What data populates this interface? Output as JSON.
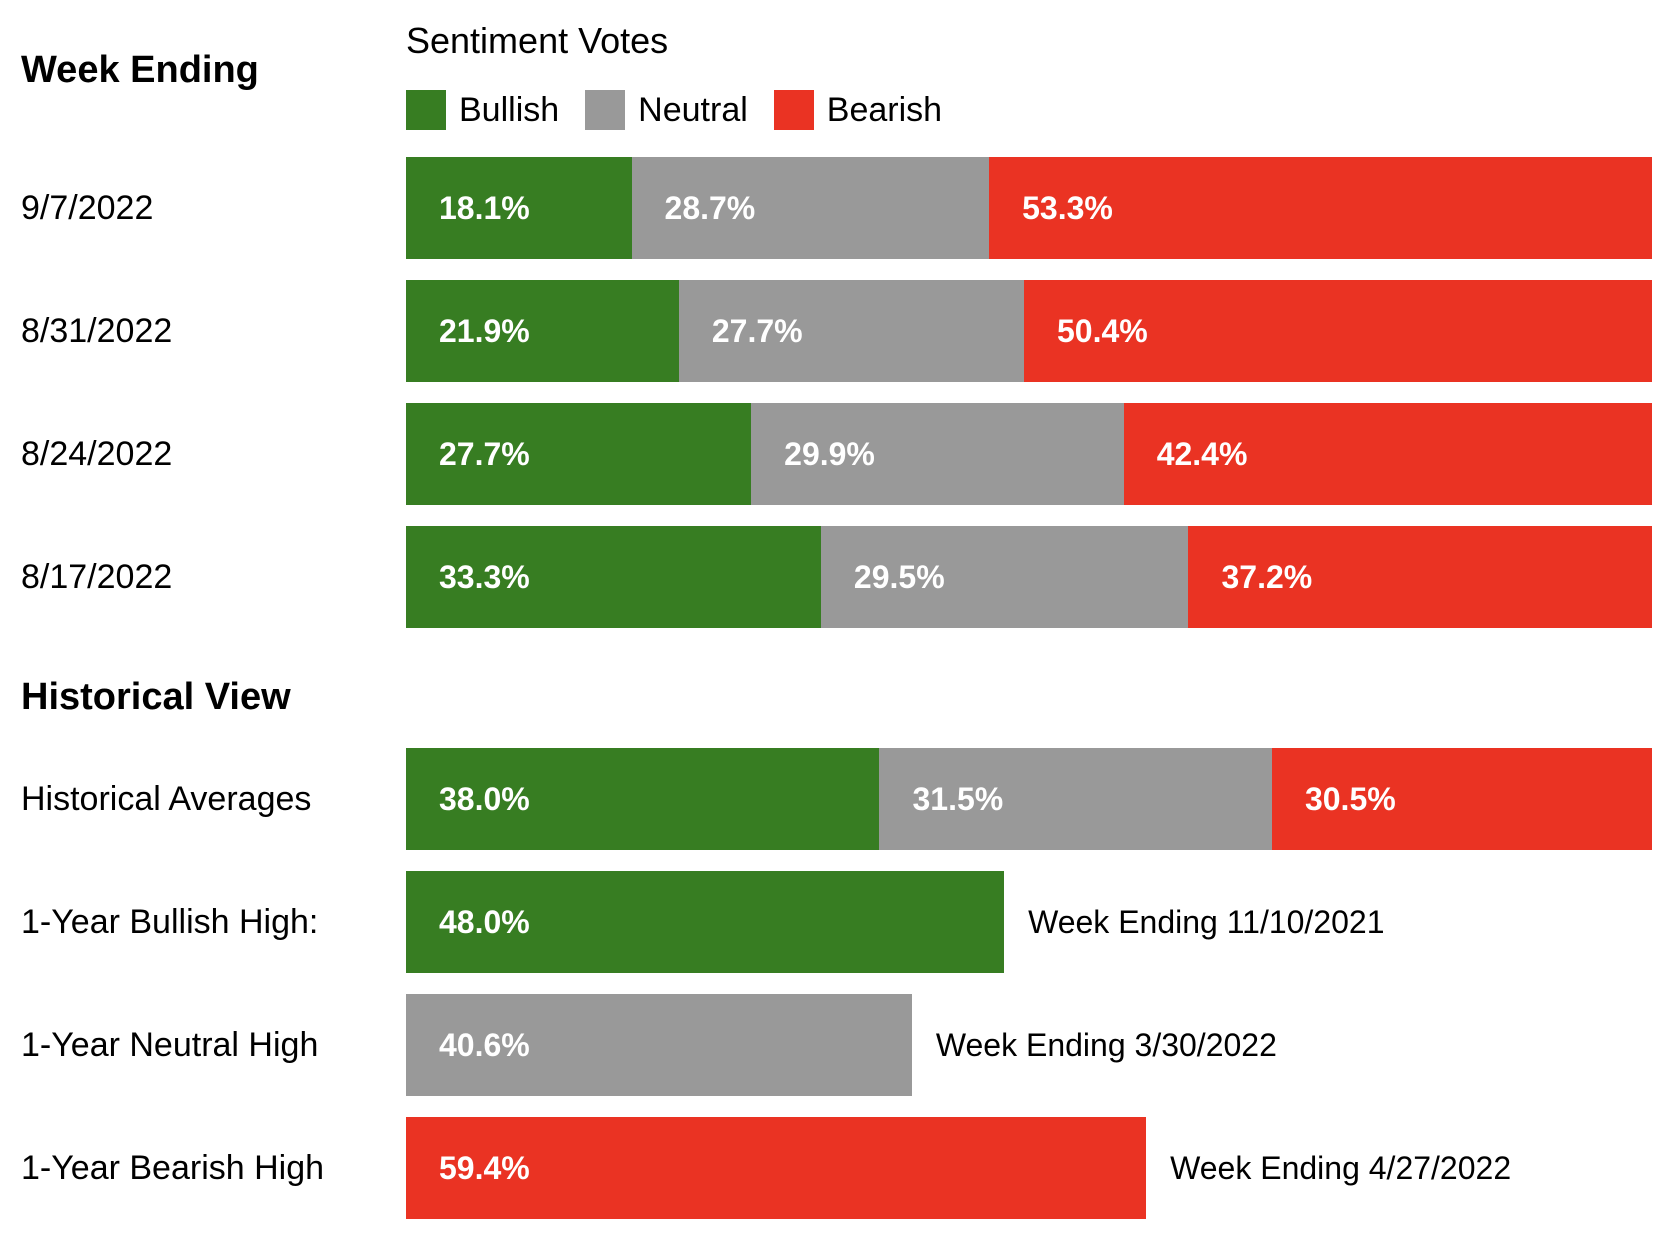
{
  "page": {
    "week_ending_label": "Week Ending",
    "chart_title": "Sentiment Votes"
  },
  "colors": {
    "bullish": "#377D22",
    "neutral": "#999999",
    "bearish": "#EA3323"
  },
  "legend": [
    {
      "key": "bullish",
      "label": "Bullish",
      "color": "#377D22"
    },
    {
      "key": "neutral",
      "label": "Neutral",
      "color": "#999999"
    },
    {
      "key": "bearish",
      "label": "Bearish",
      "color": "#EA3323"
    }
  ],
  "weekly_rows": [
    {
      "date": "9/7/2022",
      "segments": [
        {
          "key": "bullish",
          "value": 18.1,
          "label": "18.1%"
        },
        {
          "key": "neutral",
          "value": 28.7,
          "label": "28.7%"
        },
        {
          "key": "bearish",
          "value": 53.3,
          "label": "53.3%"
        }
      ]
    },
    {
      "date": "8/31/2022",
      "segments": [
        {
          "key": "bullish",
          "value": 21.9,
          "label": "21.9%"
        },
        {
          "key": "neutral",
          "value": 27.7,
          "label": "27.7%"
        },
        {
          "key": "bearish",
          "value": 50.4,
          "label": "50.4%"
        }
      ]
    },
    {
      "date": "8/24/2022",
      "segments": [
        {
          "key": "bullish",
          "value": 27.7,
          "label": "27.7%"
        },
        {
          "key": "neutral",
          "value": 29.9,
          "label": "29.9%"
        },
        {
          "key": "bearish",
          "value": 42.4,
          "label": "42.4%"
        }
      ]
    },
    {
      "date": "8/17/2022",
      "segments": [
        {
          "key": "bullish",
          "value": 33.3,
          "label": "33.3%"
        },
        {
          "key": "neutral",
          "value": 29.5,
          "label": "29.5%"
        },
        {
          "key": "bearish",
          "value": 37.2,
          "label": "37.2%"
        }
      ]
    }
  ],
  "historical": {
    "heading": "Historical View",
    "average_row": {
      "label": "Historical Averages",
      "segments": [
        {
          "key": "bullish",
          "value": 38.0,
          "label": "38.0%"
        },
        {
          "key": "neutral",
          "value": 31.5,
          "label": "31.5%"
        },
        {
          "key": "bearish",
          "value": 30.5,
          "label": "30.5%"
        }
      ]
    },
    "high_rows": [
      {
        "label": "1-Year Bullish High:",
        "key": "bullish",
        "value": 48.0,
        "value_label": "48.0%",
        "note": "Week Ending 11/10/2021"
      },
      {
        "label": "1-Year Neutral High",
        "key": "neutral",
        "value": 40.6,
        "value_label": "40.6%",
        "note": "Week Ending 3/30/2022"
      },
      {
        "label": "1-Year Bearish High",
        "key": "bearish",
        "value": 59.4,
        "value_label": "59.4%",
        "note": "Week Ending 4/27/2022"
      }
    ]
  },
  "chart_data": {
    "type": "bar",
    "subtype": "horizontal-stacked-100pct",
    "title": "Sentiment Votes",
    "row_axis_label": "Week Ending",
    "categories": [
      "9/7/2022",
      "8/31/2022",
      "8/24/2022",
      "8/17/2022"
    ],
    "series": [
      {
        "name": "Bullish",
        "color": "#377D22",
        "values": [
          18.1,
          21.9,
          27.7,
          33.3
        ]
      },
      {
        "name": "Neutral",
        "color": "#999999",
        "values": [
          28.7,
          27.7,
          29.9,
          29.5
        ]
      },
      {
        "name": "Bearish",
        "color": "#EA3323",
        "values": [
          53.3,
          50.4,
          42.4,
          37.2
        ]
      }
    ],
    "historical_section": {
      "heading": "Historical View",
      "averages": {
        "label": "Historical Averages",
        "Bullish": 38.0,
        "Neutral": 31.5,
        "Bearish": 30.5
      },
      "highs": [
        {
          "label": "1-Year Bullish High:",
          "series": "Bullish",
          "value": 48.0,
          "note": "Week Ending 11/10/2021"
        },
        {
          "label": "1-Year Neutral High",
          "series": "Neutral",
          "value": 40.6,
          "note": "Week Ending 3/30/2022"
        },
        {
          "label": "1-Year Bearish High",
          "series": "Bearish",
          "value": 59.4,
          "note": "Week Ending 4/27/2022"
        }
      ]
    },
    "xlim": [
      0,
      100
    ],
    "unit": "%",
    "grid": false,
    "legend_position": "top",
    "data_labels": "inside-start, white bold"
  }
}
